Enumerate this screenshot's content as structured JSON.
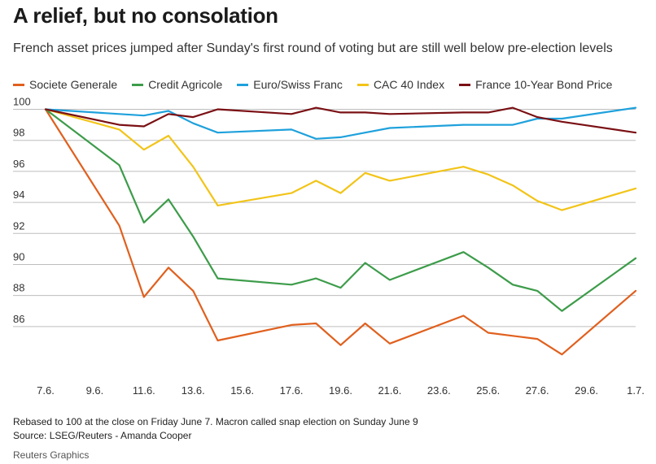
{
  "header": {
    "title": "A relief, but no consolation",
    "subtitle": "French asset prices jumped after Sunday's first round of voting but are still well below pre-election levels"
  },
  "footer": {
    "note": "Rebased to 100 at the close on Friday June 7. Macron called snap election on Sunday June 9",
    "source": "Source: LSEG/Reuters - Amanda Cooper",
    "credit": "Reuters Graphics"
  },
  "chart_data": {
    "type": "line",
    "title": "A relief, but no consolation",
    "subtitle": "French asset prices jumped after Sunday's first round of voting but are still well below pre-election levels",
    "xlabel": "",
    "ylabel": "",
    "x_ticks": [
      "7.6.",
      "9.6.",
      "11.6.",
      "13.6.",
      "15.6.",
      "17.6.",
      "19.6.",
      "21.6.",
      "23.6.",
      "25.6.",
      "27.6.",
      "29.6.",
      "1.7."
    ],
    "xlim": [
      7,
      31
    ],
    "ylim": [
      84,
      100.5
    ],
    "y_ticks": [
      86,
      88,
      90,
      92,
      94,
      96,
      98,
      100
    ],
    "grid": "horizontal",
    "legend_position": "top-left",
    "x": [
      7,
      10,
      11,
      12,
      13,
      14,
      17,
      18,
      19,
      20,
      21,
      24,
      25,
      26,
      27,
      28,
      31
    ],
    "series": [
      {
        "name": "Societe Generale",
        "color": "#e0601e",
        "values": [
          100,
          92.5,
          87.9,
          89.8,
          88.3,
          85.1,
          86.1,
          86.2,
          84.8,
          86.2,
          84.9,
          86.7,
          85.6,
          85.4,
          85.2,
          84.2,
          88.3
        ]
      },
      {
        "name": "Credit Agricole",
        "color": "#3d9c4a",
        "values": [
          100,
          96.4,
          92.7,
          94.2,
          91.8,
          89.1,
          88.7,
          89.1,
          88.5,
          90.1,
          89.0,
          90.8,
          89.8,
          88.7,
          88.3,
          87.0,
          90.4
        ]
      },
      {
        "name": "Euro/Swiss Franc",
        "color": "#1fa1dc",
        "values": [
          100,
          99.7,
          99.6,
          99.9,
          99.1,
          98.5,
          98.7,
          98.1,
          98.2,
          98.5,
          98.8,
          99.0,
          99.0,
          99.0,
          99.4,
          99.4,
          100.1
        ]
      },
      {
        "name": "CAC 40 Index",
        "color": "#f2c418",
        "values": [
          100,
          98.7,
          97.4,
          98.3,
          96.3,
          93.8,
          94.6,
          95.4,
          94.6,
          95.9,
          95.4,
          96.3,
          95.8,
          95.1,
          94.1,
          93.5,
          94.9
        ]
      },
      {
        "name": "France 10-Year Bond Price",
        "color": "#7a1014",
        "values": [
          100,
          99.0,
          98.9,
          99.7,
          99.5,
          100.0,
          99.7,
          100.1,
          99.8,
          99.8,
          99.7,
          99.8,
          99.8,
          100.1,
          99.5,
          99.2,
          98.5
        ]
      }
    ]
  }
}
